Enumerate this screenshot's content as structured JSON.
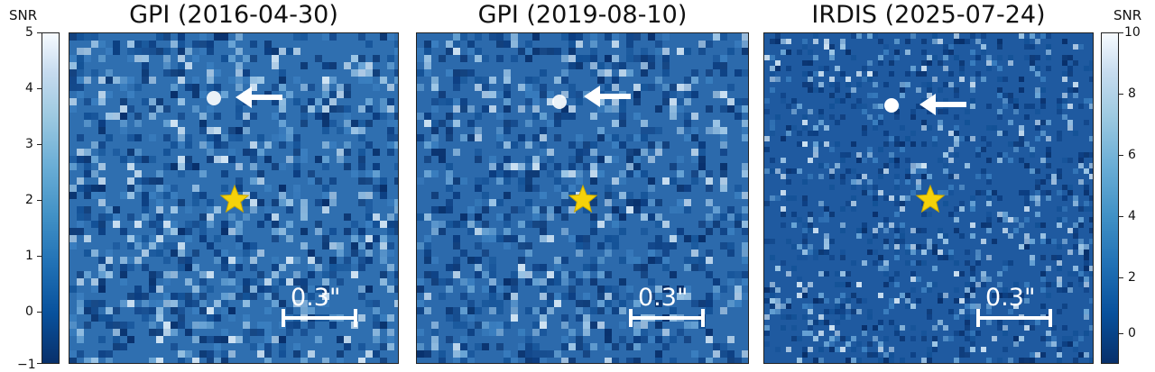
{
  "panels": [
    {
      "title": "GPI (2016-04-30)",
      "scale_label": "0.3\"",
      "noise_seed": 11,
      "noise_density": 0.55,
      "bg": "#2f6fb0"
    },
    {
      "title": "GPI (2019-08-10)",
      "scale_label": "0.3\"",
      "noise_seed": 23,
      "noise_density": 0.52,
      "bg": "#2c6aac"
    },
    {
      "title": "IRDIS (2025-07-24)",
      "scale_label": "0.3\"",
      "noise_seed": 37,
      "noise_density": 0.35,
      "bg": "#1f5aa0"
    }
  ],
  "colorbar_left": {
    "label": "SNR",
    "ticks": [
      "5",
      "4",
      "3",
      "2",
      "1",
      "0",
      "−1"
    ]
  },
  "colorbar_right": {
    "label": "SNR",
    "ticks": [
      "10",
      "8",
      "6",
      "4",
      "2",
      "0"
    ]
  },
  "icons": {
    "star": "star-icon",
    "arrow": "arrow-left-icon"
  },
  "colors": {
    "star": "#f5d20a",
    "arrow": "#ffffff",
    "scalebar": "#ffffff"
  }
}
